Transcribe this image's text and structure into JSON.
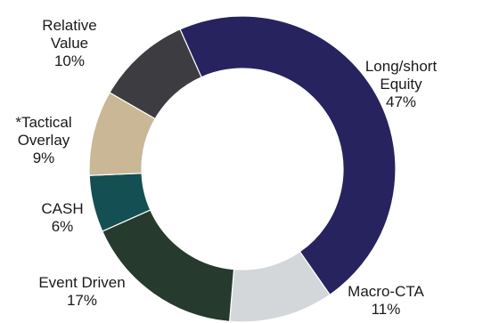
{
  "chart_data": {
    "type": "pie",
    "donut": true,
    "title": "",
    "slices": [
      {
        "label_lines": [
          "Long/short",
          "Equity"
        ],
        "value": 47,
        "value_label": "47%",
        "color": "#26235e"
      },
      {
        "label_lines": [
          "Macro-CTA"
        ],
        "value": 11,
        "value_label": "11%",
        "color": "#d3d7da"
      },
      {
        "label_lines": [
          "Event Driven"
        ],
        "value": 17,
        "value_label": "17%",
        "color": "#263a2e"
      },
      {
        "label_lines": [
          "CASH"
        ],
        "value": 6,
        "value_label": "6%",
        "color": "#144f53"
      },
      {
        "label_lines": [
          "*Tactical",
          "Overlay"
        ],
        "value": 9,
        "value_label": "9%",
        "color": "#c9b795"
      },
      {
        "label_lines": [
          "Relative",
          "Value"
        ],
        "value": 10,
        "value_label": "10%",
        "color": "#3d3c41"
      }
    ],
    "legend": "none"
  }
}
